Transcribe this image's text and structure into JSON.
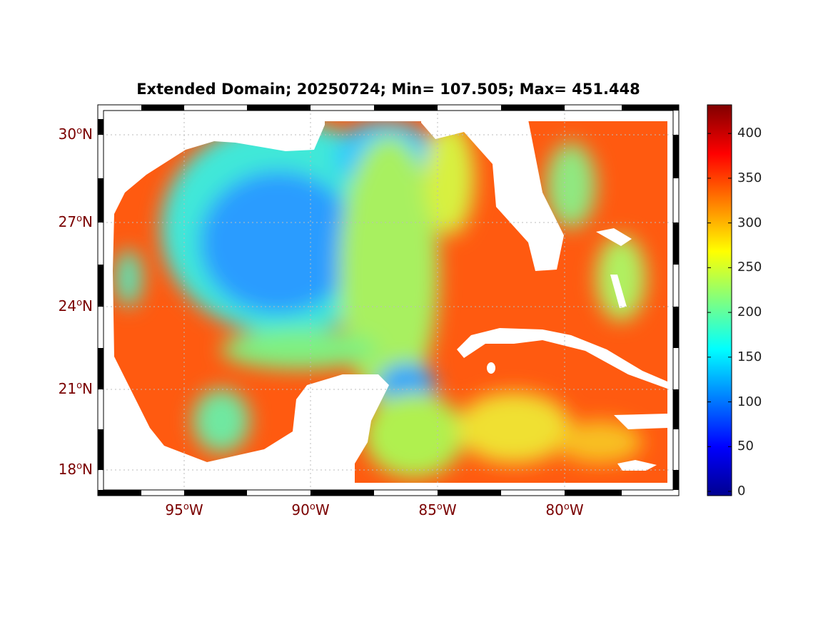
{
  "title": "Extended Domain; 20250724; Min= 107.505; Max= 451.448",
  "chart_data": {
    "type": "heatmap",
    "title": "Extended Domain; 20250724; Min= 107.505; Max= 451.448",
    "date": "20250724",
    "min": 107.505,
    "max": 451.448,
    "colormap": "jet",
    "clim": [
      0,
      432
    ],
    "lon_range": [
      -98.4,
      -75.5
    ],
    "lat_range": [
      17,
      31
    ],
    "lat_ticks": [
      {
        "deg": "30",
        "hemi": "N"
      },
      {
        "deg": "27",
        "hemi": "N"
      },
      {
        "deg": "24",
        "hemi": "N"
      },
      {
        "deg": "21",
        "hemi": "N"
      },
      {
        "deg": "18",
        "hemi": "N"
      }
    ],
    "lon_ticks": [
      {
        "deg": "95",
        "hemi": "W"
      },
      {
        "deg": "90",
        "hemi": "W"
      },
      {
        "deg": "85",
        "hemi": "W"
      },
      {
        "deg": "80",
        "hemi": "W"
      }
    ],
    "colorbar_ticks": [
      "0",
      "50",
      "100",
      "150",
      "200",
      "250",
      "300",
      "350",
      "400"
    ],
    "grid": true
  }
}
